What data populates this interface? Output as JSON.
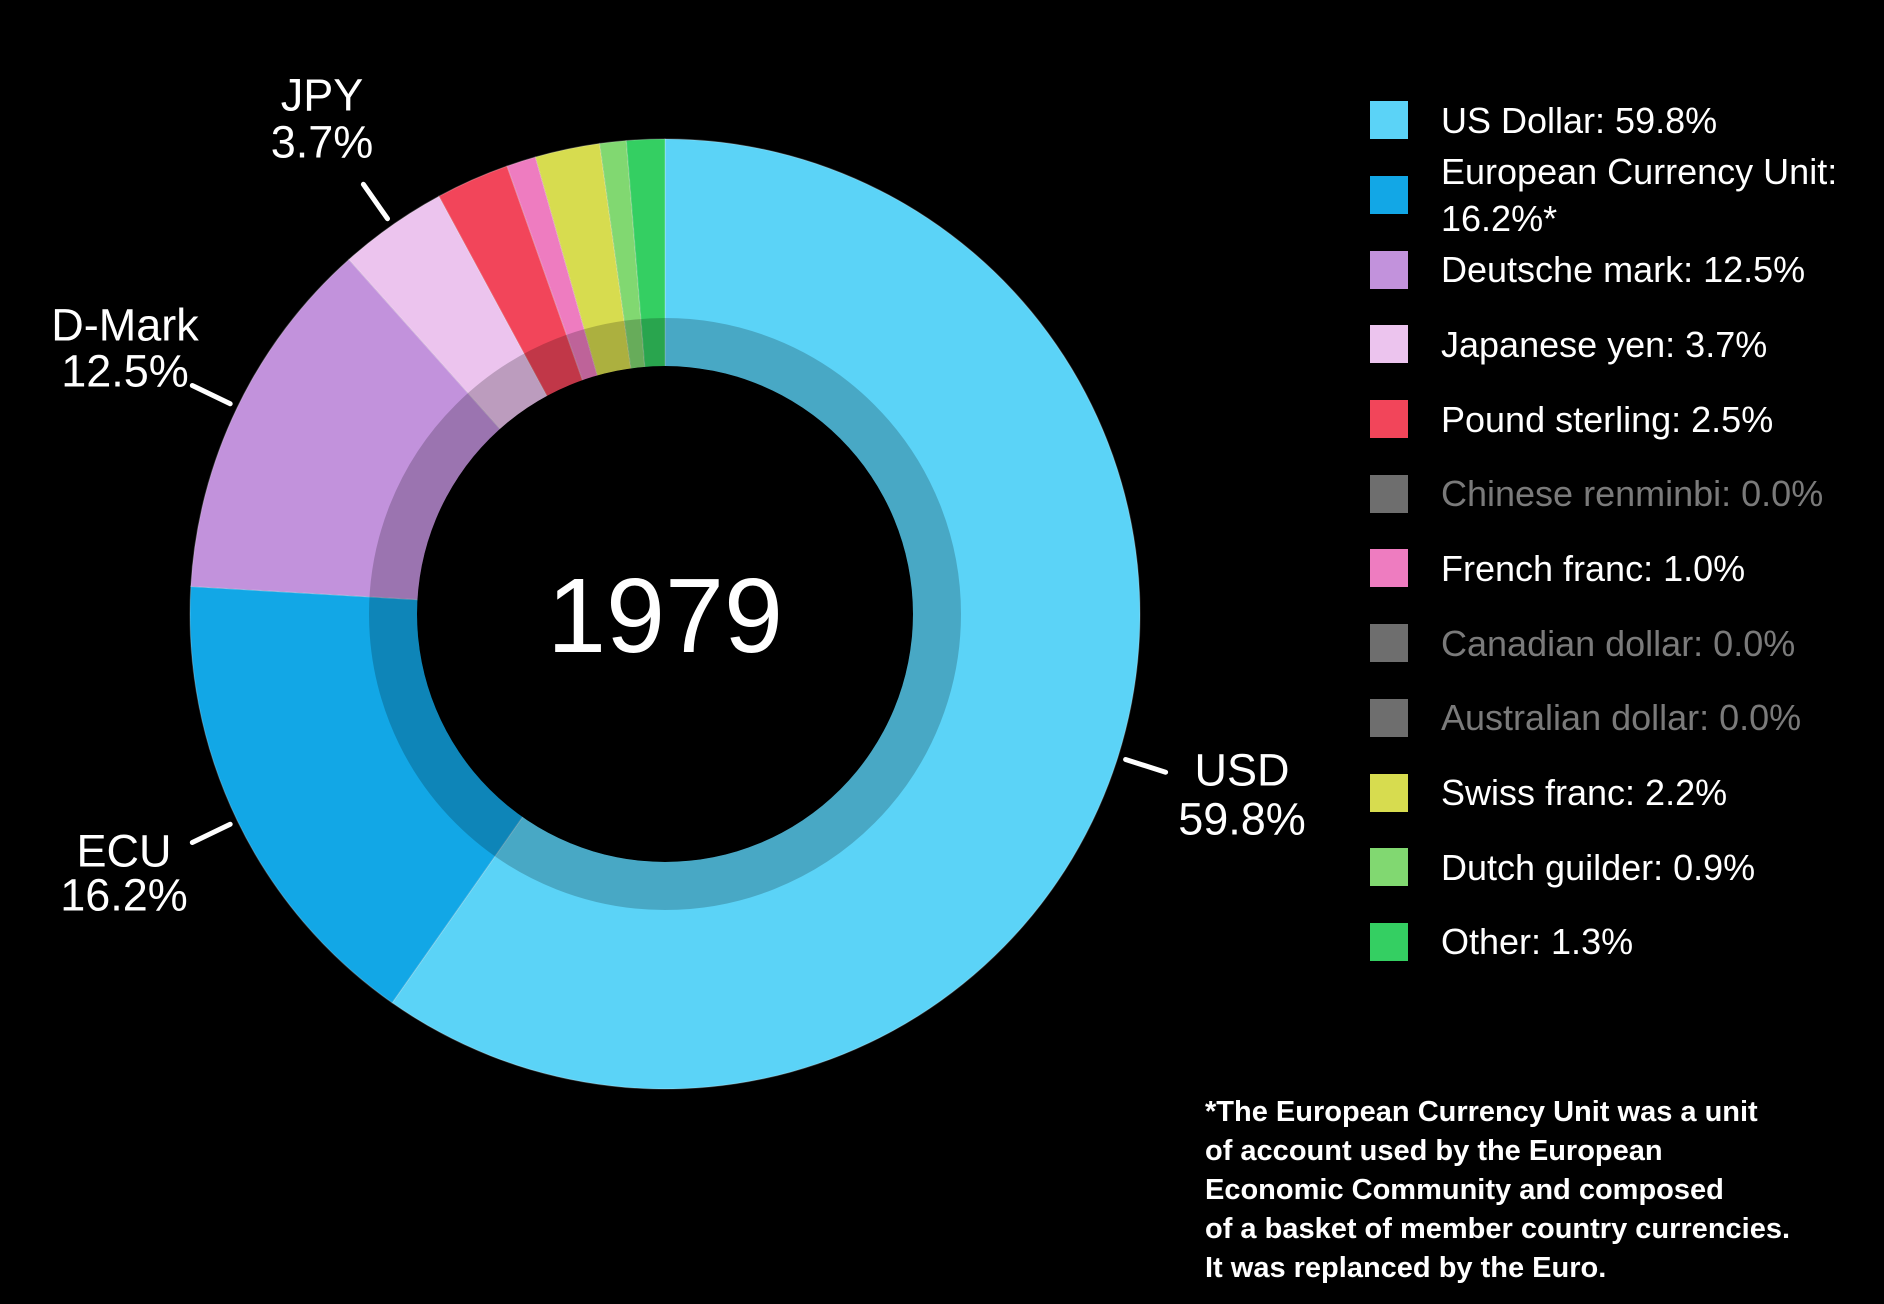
{
  "chart_data": {
    "type": "pie",
    "donut": true,
    "center_label": "1979",
    "unit": "%",
    "start_angle_deg": 0,
    "direction": "clockwise",
    "legend_position": "right",
    "series": [
      {
        "name": "US Dollar",
        "value": 59.8,
        "display": "US Dollar: 59.8%",
        "color": "#5bd3f7",
        "dimmed": false
      },
      {
        "name": "European Currency Unit",
        "value": 16.2,
        "display": "European Currency Unit: 16.2%*",
        "color": "#12a7e6",
        "dimmed": false
      },
      {
        "name": "Deutsche mark",
        "value": 12.5,
        "display": "Deutsche mark: 12.5%",
        "color": "#c292dc",
        "dimmed": false
      },
      {
        "name": "Japanese yen",
        "value": 3.7,
        "display": "Japanese yen: 3.7%",
        "color": "#ecc4ee",
        "dimmed": false
      },
      {
        "name": "Pound sterling",
        "value": 2.5,
        "display": "Pound sterling: 2.5%",
        "color": "#f2455a",
        "dimmed": false
      },
      {
        "name": "Chinese renminbi",
        "value": 0.0,
        "display": "Chinese renminbi: 0.0%",
        "color": "#6e6e6e",
        "dimmed": true
      },
      {
        "name": "French franc",
        "value": 1.0,
        "display": "French franc: 1.0%",
        "color": "#ee7cc0",
        "dimmed": false
      },
      {
        "name": "Canadian dollar",
        "value": 0.0,
        "display": "Canadian dollar: 0.0%",
        "color": "#6e6e6e",
        "dimmed": true
      },
      {
        "name": "Australian dollar",
        "value": 0.0,
        "display": "Australian dollar: 0.0%",
        "color": "#6e6e6e",
        "dimmed": true
      },
      {
        "name": "Swiss franc",
        "value": 2.2,
        "display": "Swiss franc: 2.2%",
        "color": "#d7dc4f",
        "dimmed": false
      },
      {
        "name": "Dutch guilder",
        "value": 0.9,
        "display": "Dutch guilder: 0.9%",
        "color": "#81d871",
        "dimmed": false
      },
      {
        "name": "Other",
        "value": 1.3,
        "display": "Other: 1.3%",
        "color": "#34cf62",
        "dimmed": false
      }
    ],
    "callouts": [
      {
        "series": "Japanese yen",
        "label": "JPY",
        "pct": "3.7%"
      },
      {
        "series": "Deutsche mark",
        "label": "D-Mark",
        "pct": "12.5%"
      },
      {
        "series": "European Currency Unit",
        "label": "ECU",
        "pct": "16.2%"
      },
      {
        "series": "US Dollar",
        "label": "USD",
        "pct": "59.8%"
      }
    ]
  },
  "footnote": {
    "lines": [
      "*The European Currency Unit was a unit",
      "of account used by the European",
      "Economic Community and composed",
      "of a basket of member country currencies.",
      "It was replanced by the Euro."
    ]
  },
  "colors": {
    "background": "#000000",
    "text": "#ffffff",
    "dimmed_text": "#7a7a7a"
  }
}
